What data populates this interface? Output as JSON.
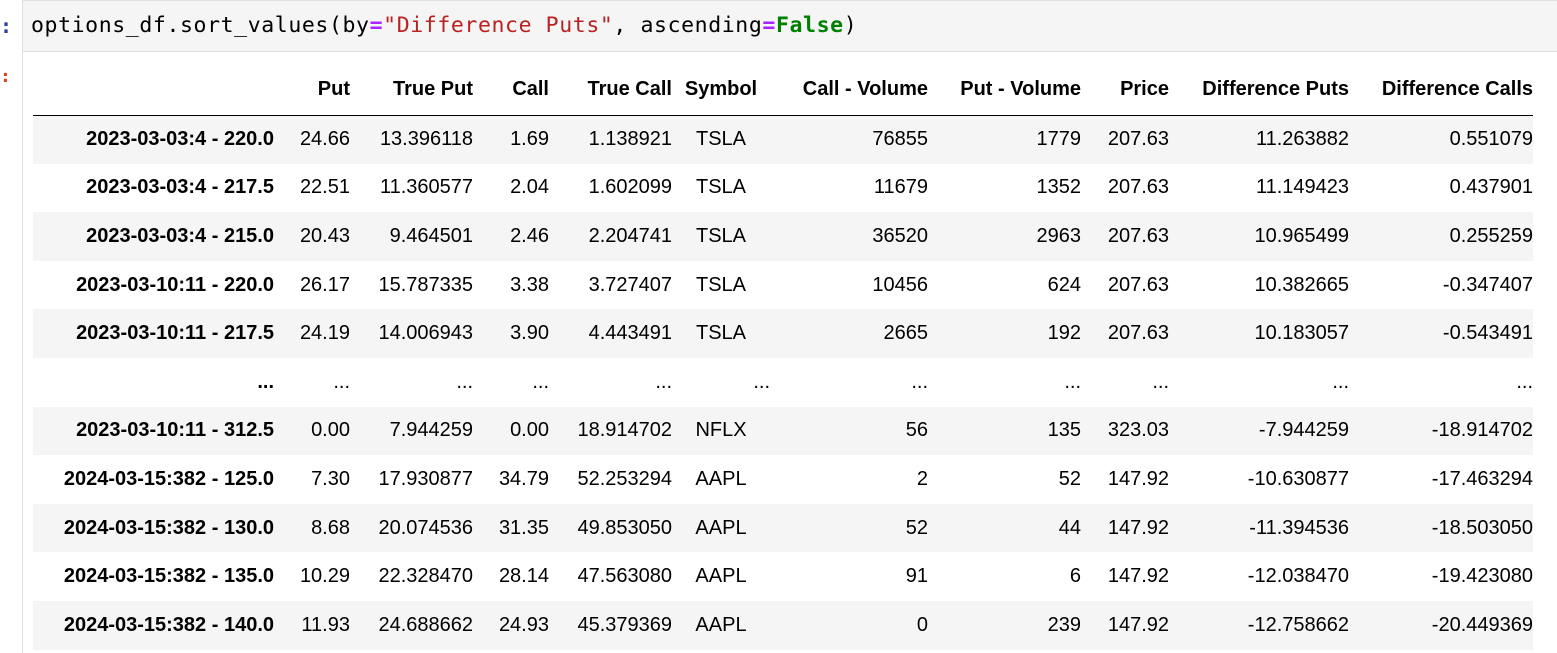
{
  "cell": {
    "in_prompt": ":",
    "out_prompt": ":",
    "code": {
      "obj": "options_df.sort_values(by",
      "eq1": "=",
      "str": "\"Difference Puts\"",
      "mid": ", ascending",
      "eq2": "=",
      "kw": "False",
      "close": ")"
    }
  },
  "table": {
    "columns": [
      "Put",
      "True Put",
      "Call",
      "True Call",
      "Symbol",
      "Call - Volume",
      "Put - Volume",
      "Price",
      "Difference Puts",
      "Difference Calls"
    ],
    "rows": [
      {
        "index": "2023-03-03:4 - 220.0",
        "cells": [
          "24.66",
          "13.396118",
          "1.69",
          "1.138921",
          "TSLA",
          "76855",
          "1779",
          "207.63",
          "11.263882",
          "0.551079"
        ]
      },
      {
        "index": "2023-03-03:4 - 217.5",
        "cells": [
          "22.51",
          "11.360577",
          "2.04",
          "1.602099",
          "TSLA",
          "11679",
          "1352",
          "207.63",
          "11.149423",
          "0.437901"
        ]
      },
      {
        "index": "2023-03-03:4 - 215.0",
        "cells": [
          "20.43",
          "9.464501",
          "2.46",
          "2.204741",
          "TSLA",
          "36520",
          "2963",
          "207.63",
          "10.965499",
          "0.255259"
        ]
      },
      {
        "index": "2023-03-10:11 - 220.0",
        "cells": [
          "26.17",
          "15.787335",
          "3.38",
          "3.727407",
          "TSLA",
          "10456",
          "624",
          "207.63",
          "10.382665",
          "-0.347407"
        ]
      },
      {
        "index": "2023-03-10:11 - 217.5",
        "cells": [
          "24.19",
          "14.006943",
          "3.90",
          "4.443491",
          "TSLA",
          "2665",
          "192",
          "207.63",
          "10.183057",
          "-0.543491"
        ]
      },
      {
        "index": "...",
        "cells": [
          "...",
          "...",
          "...",
          "...",
          "...",
          "...",
          "...",
          "...",
          "...",
          "..."
        ]
      },
      {
        "index": "2023-03-10:11 - 312.5",
        "cells": [
          "0.00",
          "7.944259",
          "0.00",
          "18.914702",
          "NFLX",
          "56",
          "135",
          "323.03",
          "-7.944259",
          "-18.914702"
        ]
      },
      {
        "index": "2024-03-15:382 - 125.0",
        "cells": [
          "7.30",
          "17.930877",
          "34.79",
          "52.253294",
          "AAPL",
          "2",
          "52",
          "147.92",
          "-10.630877",
          "-17.463294"
        ]
      },
      {
        "index": "2024-03-15:382 - 130.0",
        "cells": [
          "8.68",
          "20.074536",
          "31.35",
          "49.853050",
          "AAPL",
          "52",
          "44",
          "147.92",
          "-11.394536",
          "-18.503050"
        ]
      },
      {
        "index": "2024-03-15:382 - 135.0",
        "cells": [
          "10.29",
          "22.328470",
          "28.14",
          "47.563080",
          "AAPL",
          "91",
          "6",
          "147.92",
          "-12.038470",
          "-19.423080"
        ]
      },
      {
        "index": "2024-03-15:382 - 140.0",
        "cells": [
          "11.93",
          "24.688662",
          "24.93",
          "45.379369",
          "AAPL",
          "0",
          "239",
          "147.92",
          "-12.758662",
          "-20.449369"
        ]
      }
    ]
  }
}
